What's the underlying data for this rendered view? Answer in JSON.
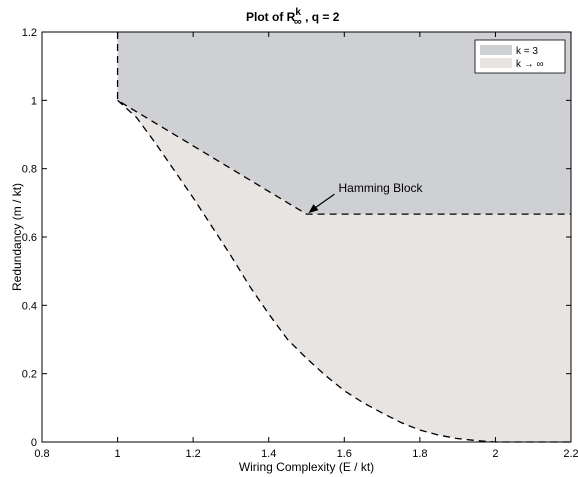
{
  "chart_data": {
    "type": "area",
    "title": {
      "prefix": "Plot of",
      "symbol": "R",
      "superscript": "k",
      "subscript": "∞",
      "suffix": ", q = 2"
    },
    "xlabel": "Wiring Complexity (E / kt)",
    "ylabel": "Redundancy (m / kt)",
    "xlim": [
      0.8,
      2.2
    ],
    "ylim": [
      0,
      1.2
    ],
    "x_ticks": [
      0.8,
      1,
      1.2,
      1.4,
      1.6,
      1.8,
      2,
      2.2
    ],
    "x_tick_labels": [
      "0.8",
      "1",
      "1.2",
      "1.4",
      "1.6",
      "1.8",
      "2",
      "2.2"
    ],
    "y_ticks": [
      0,
      0.2,
      0.4,
      0.6,
      0.8,
      1,
      1.2
    ],
    "y_tick_labels": [
      "0",
      "0.2",
      "0.4",
      "0.6",
      "0.8",
      "1",
      "1.2"
    ],
    "grid": false,
    "legend_position": "top-right",
    "series": [
      {
        "name": "k = 3",
        "color": "#cfd0d3",
        "boundary": [
          [
            1,
            1.2
          ],
          [
            1,
            1
          ],
          [
            1.5,
            0.667
          ],
          [
            2.2,
            0.667
          ]
        ]
      },
      {
        "name": "k → ∞",
        "color": "#e8e4e2",
        "boundary": [
          [
            1,
            1
          ],
          [
            1.05,
            0.95
          ],
          [
            1.1,
            0.875
          ],
          [
            1.15,
            0.795
          ],
          [
            1.2,
            0.715
          ],
          [
            1.25,
            0.63
          ],
          [
            1.3,
            0.545
          ],
          [
            1.35,
            0.455
          ],
          [
            1.4,
            0.375
          ],
          [
            1.45,
            0.3
          ],
          [
            1.5,
            0.245
          ],
          [
            1.55,
            0.195
          ],
          [
            1.6,
            0.15
          ],
          [
            1.65,
            0.115
          ],
          [
            1.7,
            0.085
          ],
          [
            1.75,
            0.057
          ],
          [
            1.8,
            0.035
          ],
          [
            1.85,
            0.02
          ],
          [
            1.9,
            0.01
          ],
          [
            1.95,
            0.004
          ],
          [
            2,
            0
          ],
          [
            2.2,
            0
          ]
        ]
      }
    ],
    "annotation": {
      "text": "Hamming Block",
      "x": 1.5,
      "y": 0.667
    }
  }
}
